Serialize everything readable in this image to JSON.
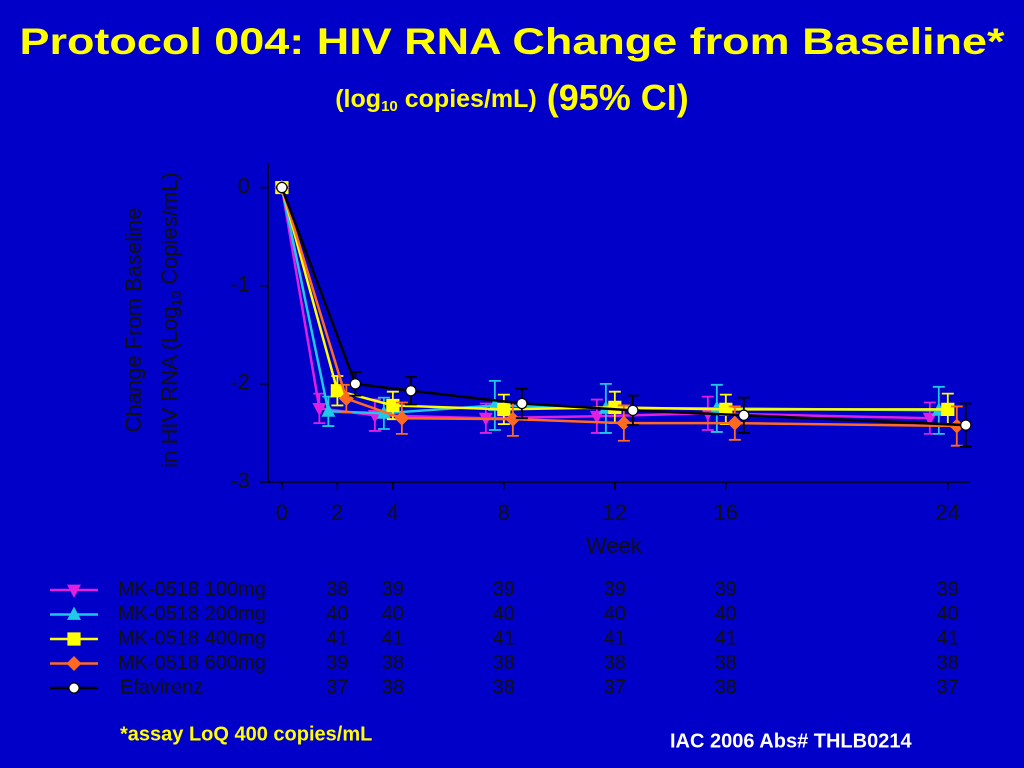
{
  "title": "Protocol 004: HIV RNA Change from Baseline*",
  "subtitle": [
    "(log",
    "10",
    "copies/mL)",
    "(95% CI)"
  ],
  "footnote": "*assay LoQ 400 copies/mL",
  "source": "IAC 2006 Abs# THLB0214",
  "chart_data": {
    "type": "line",
    "ylabel": {
      "line1": "Change From Baseline",
      "line2": [
        "in HIV RNA (Log",
        "10",
        "Copies/mL)"
      ]
    },
    "xlabel": "Week",
    "x": [
      0,
      2,
      4,
      8,
      12,
      16,
      24
    ],
    "xlim": [
      -0.5,
      24.8
    ],
    "xticks": [
      0,
      2,
      4,
      8,
      12,
      16,
      24
    ],
    "ylim": [
      -3,
      0.25
    ],
    "yticks": [
      0,
      -1,
      -2,
      -3
    ],
    "series": [
      {
        "name": "MK-0518 100mg",
        "color": "#e020e0",
        "marker": "triangle-down",
        "marker_fill": "#e020e0",
        "values": [
          0,
          -2.25,
          -2.32,
          -2.35,
          -2.33,
          -2.3,
          -2.35
        ],
        "errors": [
          0,
          0.15,
          0.16,
          0.15,
          0.17,
          0.17,
          0.16
        ],
        "n": [
          38,
          39,
          39,
          39,
          39,
          39
        ]
      },
      {
        "name": "MK-0518 200mg",
        "color": "#20c8e8",
        "marker": "triangle-up",
        "marker_fill": "#20c8e8",
        "values": [
          0,
          -2.28,
          -2.3,
          -2.22,
          -2.25,
          -2.25,
          -2.27
        ],
        "errors": [
          0,
          0.15,
          0.16,
          0.25,
          0.25,
          0.24,
          0.24
        ],
        "n": [
          40,
          40,
          40,
          40,
          40,
          40
        ]
      },
      {
        "name": "MK-0518 400mg",
        "color": "#ffff00",
        "marker": "square",
        "marker_fill": "#ffff00",
        "values": [
          0,
          -2.07,
          -2.22,
          -2.26,
          -2.24,
          -2.26,
          -2.26
        ],
        "errors": [
          0,
          0.15,
          0.14,
          0.15,
          0.16,
          0.15,
          0.16
        ],
        "n": [
          41,
          41,
          41,
          41,
          41,
          41
        ]
      },
      {
        "name": "MK-0518 600mg",
        "color": "#ff6a20",
        "marker": "diamond",
        "marker_fill": "#ff6a20",
        "values": [
          0,
          -2.15,
          -2.35,
          -2.36,
          -2.4,
          -2.4,
          -2.43
        ],
        "errors": [
          0,
          0.14,
          0.16,
          0.17,
          0.18,
          0.17,
          0.2
        ],
        "n": [
          39,
          38,
          38,
          38,
          38,
          38
        ]
      },
      {
        "name": "Efavirenz",
        "color": "#000000",
        "marker": "circle",
        "marker_fill": "#ffffff",
        "values": [
          0,
          -2.0,
          -2.07,
          -2.2,
          -2.27,
          -2.32,
          -2.42
        ],
        "errors": [
          0,
          0.12,
          0.14,
          0.15,
          0.15,
          0.18,
          0.22
        ],
        "n": [
          37,
          38,
          38,
          37,
          38,
          37
        ]
      }
    ]
  }
}
